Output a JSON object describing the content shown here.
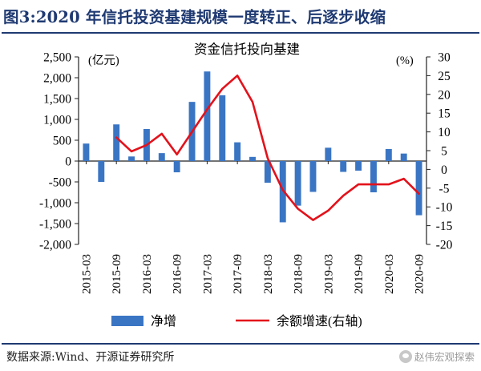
{
  "figure_title": "图3:2020 年信托投资基建规模一度转正、后逐步收缩",
  "source_note": "数据来源:Wind、开源证券研究所",
  "watermark": "赵伟宏观探索",
  "colors": {
    "title": "#1f3a72",
    "bar": "#3a75c4",
    "line": "#e3121b",
    "axis": "#222222"
  },
  "chart_data": {
    "type": "bar",
    "title": "资金信托投向基建",
    "left_axis_unit": "(亿元)",
    "right_axis_unit": "(%)",
    "left_ylim": [
      -2000,
      2500
    ],
    "right_ylim": [
      -20,
      30
    ],
    "left_ticks": [
      "2,500",
      "2,000",
      "1,500",
      "1,000",
      "500",
      "0",
      "-500",
      "-1,000",
      "-1,500",
      "-2,000"
    ],
    "right_ticks": [
      "30",
      "25",
      "20",
      "15",
      "10",
      "5",
      "0",
      "-5",
      "-10",
      "-15",
      "-20"
    ],
    "x_tick_labels": [
      "2015-03",
      "2015-09",
      "2016-03",
      "2016-09",
      "2017-03",
      "2017-09",
      "2018-03",
      "2018-09",
      "2019-03",
      "2019-09",
      "2020-03",
      "2020-09"
    ],
    "categories": [
      "2015-03",
      "2015-06",
      "2015-09",
      "2015-12",
      "2016-03",
      "2016-06",
      "2016-09",
      "2016-12",
      "2017-03",
      "2017-06",
      "2017-09",
      "2017-12",
      "2018-03",
      "2018-06",
      "2018-09",
      "2018-12",
      "2019-03",
      "2019-06",
      "2019-09",
      "2019-12",
      "2020-03",
      "2020-06",
      "2020-09"
    ],
    "series": [
      {
        "name": "净增",
        "type": "bar",
        "axis": "left",
        "values": [
          420,
          -500,
          880,
          110,
          770,
          190,
          -270,
          1420,
          2150,
          1580,
          450,
          100,
          -520,
          -1470,
          -1070,
          -740,
          320,
          -260,
          -230,
          -750,
          290,
          180,
          -1300
        ]
      },
      {
        "name": "余额增速(右轴)",
        "type": "line",
        "axis": "right",
        "values": [
          null,
          null,
          8.5,
          4.8,
          6.5,
          9.5,
          4.0,
          10.0,
          16.0,
          21.5,
          25.0,
          18.0,
          3.0,
          -5.5,
          -10.5,
          -13.5,
          -11.0,
          -7.0,
          -4.0,
          -4.0,
          -4.0,
          -2.5,
          -6.5
        ]
      }
    ],
    "legend_position": "bottom"
  }
}
